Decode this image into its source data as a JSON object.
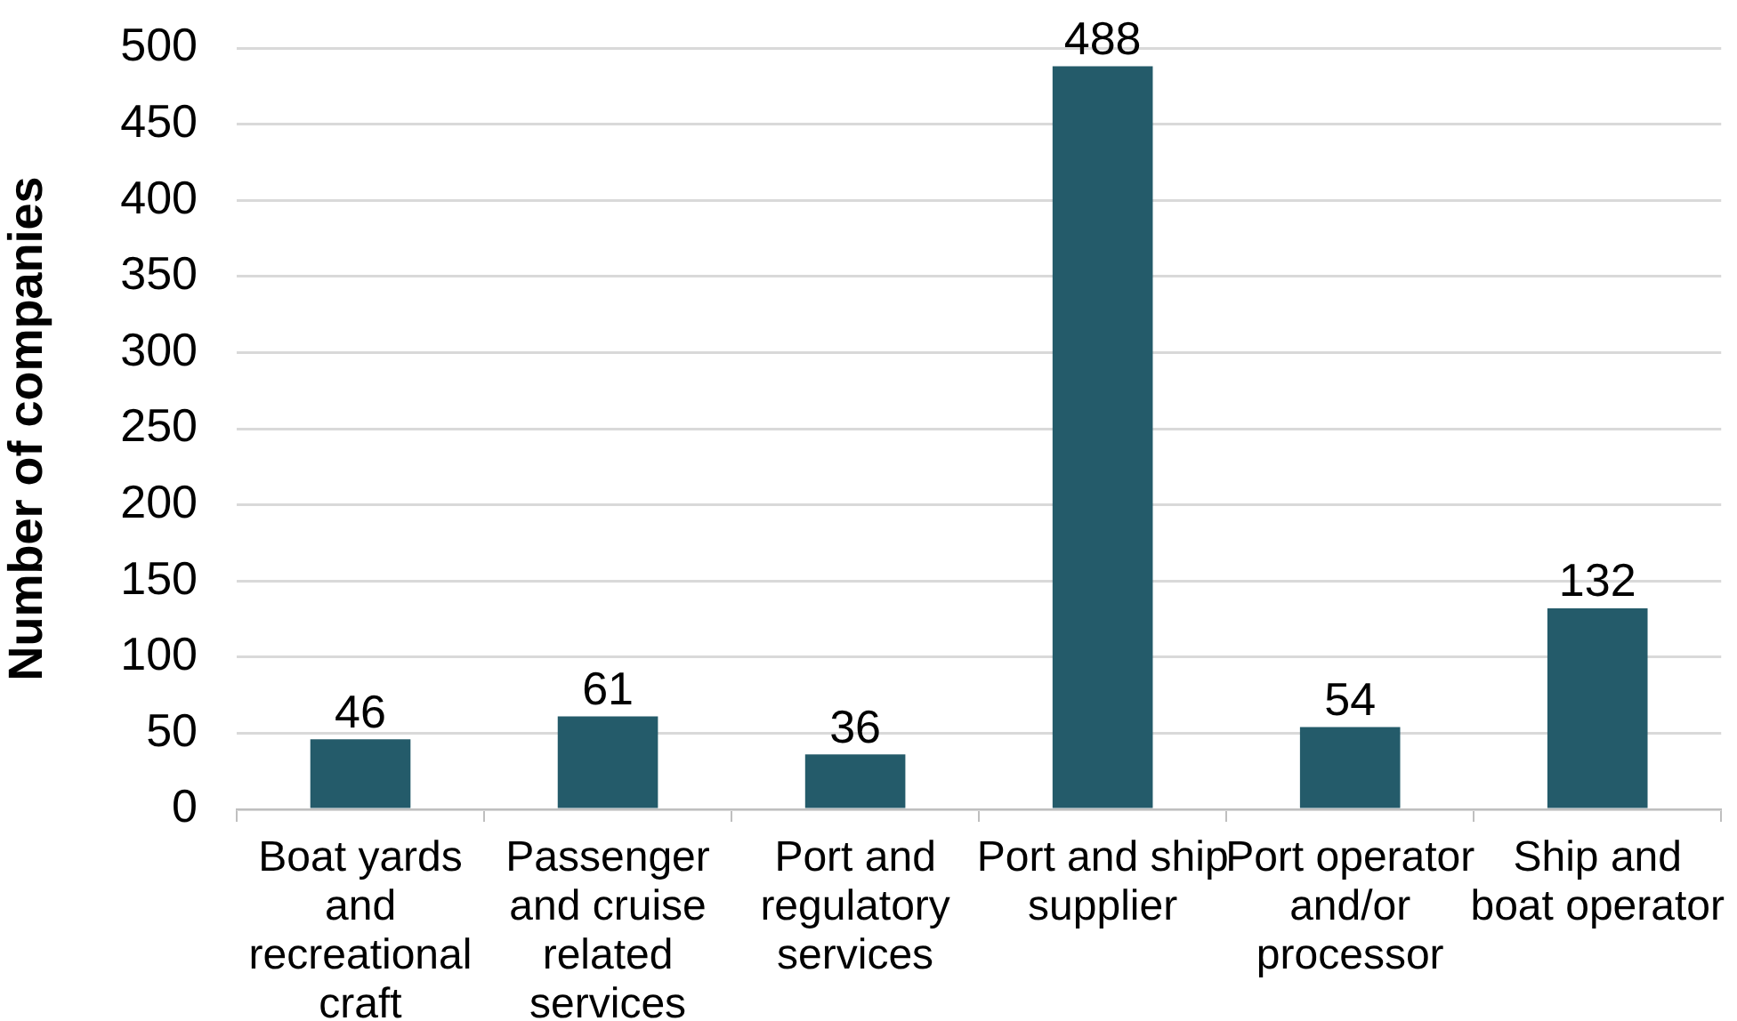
{
  "chart_data": {
    "type": "bar",
    "ylabel": "Number of companies",
    "categories": [
      "Boat yards and recreational craft",
      "Passenger and cruise related services",
      "Port and regulatory services",
      "Port and ship supplier",
      "Port operator and/or processor",
      "Ship and boat operator"
    ],
    "values": [
      46,
      61,
      36,
      488,
      54,
      132
    ],
    "color": "#245b6a",
    "ylim": [
      0,
      500
    ],
    "yticks": [
      0,
      50,
      100,
      150,
      200,
      250,
      300,
      350,
      400,
      450,
      500
    ],
    "grid": "y",
    "data_labels": true
  }
}
